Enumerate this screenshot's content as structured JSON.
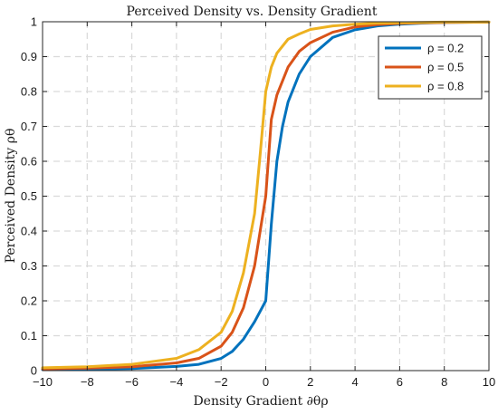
{
  "chart_data": {
    "type": "line",
    "title": "Perceived Density vs. Density Gradient",
    "xlabel": "Density Gradient ∂θρ",
    "ylabel": "Perceived Density ρθ",
    "xlim": [
      -10,
      10
    ],
    "ylim": [
      0,
      1
    ],
    "xticks": [
      -10,
      -8,
      -6,
      -4,
      -2,
      0,
      2,
      4,
      6,
      8,
      10
    ],
    "yticks": [
      0,
      0.1,
      0.2,
      0.3,
      0.4,
      0.5,
      0.6,
      0.7,
      0.8,
      0.9,
      1
    ],
    "xtick_labels": [
      "−10",
      "−8",
      "−6",
      "−4",
      "−2",
      "0",
      "2",
      "4",
      "6",
      "8",
      "10"
    ],
    "ytick_labels": [
      "0",
      "0.1",
      "0.2",
      "0.3",
      "0.4",
      "0.5",
      "0.6",
      "0.7",
      "0.8",
      "0.9",
      "1"
    ],
    "grid": true,
    "legend_position": "top-right",
    "series": [
      {
        "name": "ρ = 0.2",
        "color": "#0072BD",
        "x": [
          -10,
          -8,
          -6,
          -4,
          -3,
          -2,
          -1.5,
          -1,
          -0.5,
          -0.25,
          0,
          0.25,
          0.5,
          0.75,
          1,
          1.5,
          2,
          3,
          4,
          5,
          6,
          7,
          8,
          10
        ],
        "y": [
          0.003,
          0.004,
          0.006,
          0.012,
          0.018,
          0.035,
          0.055,
          0.09,
          0.14,
          0.17,
          0.2,
          0.42,
          0.6,
          0.7,
          0.77,
          0.85,
          0.9,
          0.955,
          0.977,
          0.988,
          0.993,
          0.996,
          0.998,
          0.999
        ]
      },
      {
        "name": "ρ = 0.5",
        "color": "#D95319",
        "x": [
          -10,
          -8,
          -6,
          -4,
          -3,
          -2,
          -1.5,
          -1,
          -0.5,
          -0.25,
          0,
          0.25,
          0.5,
          1,
          1.5,
          2,
          3,
          4,
          5,
          6,
          7,
          8,
          10
        ],
        "y": [
          0.005,
          0.007,
          0.011,
          0.022,
          0.035,
          0.07,
          0.11,
          0.18,
          0.3,
          0.4,
          0.5,
          0.72,
          0.79,
          0.87,
          0.915,
          0.94,
          0.97,
          0.985,
          0.992,
          0.995,
          0.997,
          0.998,
          0.999
        ]
      },
      {
        "name": "ρ = 0.8",
        "color": "#EDB120",
        "x": [
          -10,
          -8,
          -6,
          -4,
          -3,
          -2,
          -1.5,
          -1,
          -0.5,
          -0.25,
          0,
          0.25,
          0.5,
          1,
          1.5,
          2,
          3,
          4,
          5,
          6,
          7,
          8,
          10
        ],
        "y": [
          0.008,
          0.011,
          0.018,
          0.035,
          0.06,
          0.11,
          0.17,
          0.28,
          0.45,
          0.62,
          0.8,
          0.87,
          0.91,
          0.95,
          0.965,
          0.978,
          0.988,
          0.993,
          0.996,
          0.997,
          0.998,
          0.999,
          0.999
        ]
      }
    ]
  }
}
